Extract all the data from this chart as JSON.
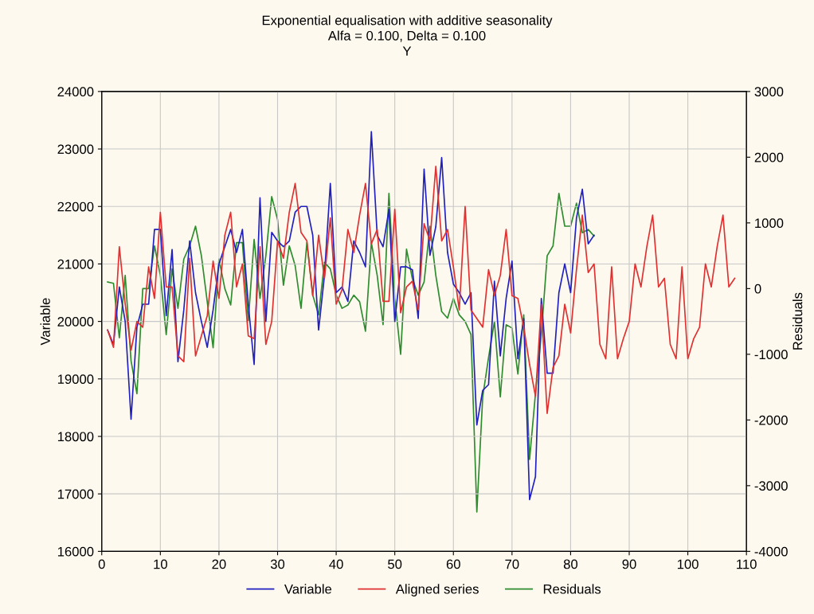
{
  "chart_data": {
    "type": "line",
    "title": "Exponential equalisation with additive seasonality",
    "subtitle": "Alfa = 0.100, Delta = 0.100",
    "annotations": [
      "Y"
    ],
    "xlabel": null,
    "ylabel": "Variable",
    "y2label": "Residuals",
    "xlim": [
      0,
      110
    ],
    "xticks": [
      0,
      10,
      20,
      30,
      40,
      50,
      60,
      70,
      80,
      90,
      100,
      110
    ],
    "ylim": [
      16000,
      24000
    ],
    "yticks": [
      16000,
      17000,
      18000,
      19000,
      20000,
      21000,
      22000,
      23000,
      24000
    ],
    "y2lim": [
      -4000,
      3000
    ],
    "y2ticks": [
      -4000,
      -3000,
      -2000,
      -1000,
      0,
      1000,
      2000,
      3000
    ],
    "grid": true,
    "legend": "bottom",
    "marker": "none",
    "line_style": "solid",
    "series": [
      {
        "name": "Variable",
        "color": "#2020c0",
        "x": [
          1,
          2,
          3,
          4,
          5,
          6,
          7,
          8,
          9,
          10,
          11,
          12,
          13,
          14,
          15,
          16,
          17,
          18,
          19,
          20,
          21,
          22,
          23,
          24,
          25,
          26,
          27,
          28,
          29,
          30,
          31,
          32,
          33,
          34,
          35,
          36,
          37,
          38,
          39,
          40,
          41,
          42,
          43,
          44,
          45,
          46,
          47,
          48,
          49,
          50,
          51,
          52,
          53,
          54,
          55,
          56,
          57,
          58,
          59,
          60,
          61,
          62,
          63,
          64,
          65,
          66,
          67,
          68,
          69,
          70,
          71,
          72,
          73,
          74,
          75,
          76,
          77,
          78,
          79,
          80,
          81,
          82,
          83,
          84
        ],
        "values": [
          19850,
          19600,
          20600,
          20000,
          18300,
          19900,
          20300,
          20300,
          21600,
          21600,
          20100,
          21250,
          19300,
          20200,
          21400,
          20500,
          20000,
          19550,
          20200,
          21000,
          21300,
          21600,
          21200,
          21600,
          20300,
          19250,
          22150,
          20000,
          21550,
          21400,
          21300,
          21400,
          21900,
          22000,
          22000,
          21500,
          19850,
          20800,
          22400,
          20500,
          20600,
          20350,
          21400,
          21200,
          20950,
          23300,
          21500,
          21300,
          21950,
          20000,
          20950,
          20950,
          20900,
          20050,
          22650,
          21150,
          21650,
          22850,
          21200,
          20650,
          20500,
          20300,
          20500,
          18200,
          18800,
          18900,
          20700,
          19400,
          20400,
          21050,
          19350,
          20050,
          16900,
          17300,
          20400,
          19100,
          19100,
          20500,
          21000,
          20500,
          21800,
          22300,
          21350,
          21500
        ]
      },
      {
        "name": "Aligned series",
        "color": "#e03030",
        "x": [
          1,
          2,
          3,
          4,
          5,
          6,
          7,
          8,
          9,
          10,
          11,
          12,
          13,
          14,
          15,
          16,
          17,
          18,
          19,
          20,
          21,
          22,
          23,
          24,
          25,
          26,
          27,
          28,
          29,
          30,
          31,
          32,
          33,
          34,
          35,
          36,
          37,
          38,
          39,
          40,
          41,
          42,
          43,
          44,
          45,
          46,
          47,
          48,
          49,
          50,
          51,
          52,
          53,
          54,
          55,
          56,
          57,
          58,
          59,
          60,
          61,
          62,
          63,
          64,
          65,
          66,
          67,
          68,
          69,
          70,
          71,
          72,
          73,
          74,
          75,
          76,
          77,
          78,
          79,
          80,
          81,
          82,
          83,
          84,
          85,
          86,
          87,
          88,
          89,
          90,
          91,
          92,
          93,
          94,
          95,
          96,
          97,
          98,
          99,
          100,
          101,
          102,
          103,
          104,
          105,
          106,
          107,
          108
        ],
        "values": [
          19850,
          19550,
          21300,
          20300,
          19500,
          20000,
          19900,
          20950,
          20400,
          21900,
          20600,
          20600,
          19400,
          19300,
          21100,
          19400,
          19750,
          20100,
          21050,
          20400,
          21500,
          21900,
          20600,
          21000,
          19750,
          19700,
          21300,
          19600,
          20000,
          21400,
          21100,
          21900,
          22400,
          21550,
          21400,
          20450,
          21500,
          20750,
          21800,
          20300,
          20550,
          21600,
          21200,
          21850,
          22400,
          21350,
          21600,
          20350,
          20350,
          21950,
          20150,
          20600,
          20700,
          20200,
          21700,
          21400,
          22700,
          21400,
          21600,
          20950,
          20200,
          22000,
          20200,
          20050,
          19900,
          20900,
          20450,
          20800,
          21600,
          20450,
          20400,
          19900,
          19250,
          18700,
          20300,
          18400,
          19200,
          19400,
          20300,
          19800,
          20900,
          21850,
          20850,
          21000,
          19600,
          19350,
          20950,
          19350,
          19700,
          20000,
          21000,
          20600,
          21300,
          21850,
          20600,
          20750,
          19600,
          19350,
          20950,
          19350,
          19700,
          19900,
          21000,
          20600,
          21300,
          21850,
          20600,
          20750
        ]
      },
      {
        "name": "Residuals",
        "color": "#2e8b2e",
        "axis": "y2",
        "x": [
          1,
          2,
          3,
          4,
          5,
          6,
          7,
          8,
          9,
          10,
          11,
          12,
          13,
          14,
          15,
          16,
          17,
          18,
          19,
          20,
          21,
          22,
          23,
          24,
          25,
          26,
          27,
          28,
          29,
          30,
          31,
          32,
          33,
          34,
          35,
          36,
          37,
          38,
          39,
          40,
          41,
          42,
          43,
          44,
          45,
          46,
          47,
          48,
          49,
          50,
          51,
          52,
          53,
          54,
          55,
          56,
          57,
          58,
          59,
          60,
          61,
          62,
          63,
          64,
          65,
          66,
          67,
          68,
          69,
          70,
          71,
          72,
          73,
          74,
          75,
          76,
          77,
          78,
          79,
          80,
          81,
          82,
          83,
          84
        ],
        "values": [
          100,
          80,
          -750,
          200,
          -1100,
          -1600,
          0,
          0,
          650,
          200,
          -700,
          300,
          -300,
          450,
          650,
          950,
          500,
          -200,
          -900,
          450,
          0,
          -250,
          700,
          700,
          -500,
          750,
          -150,
          500,
          1400,
          1050,
          50,
          650,
          350,
          -300,
          700,
          -100,
          -400,
          400,
          300,
          -100,
          -300,
          -250,
          -100,
          -200,
          -650,
          700,
          200,
          -550,
          1450,
          -150,
          -1000,
          600,
          150,
          -100,
          100,
          950,
          200,
          -350,
          -450,
          -150,
          -400,
          -500,
          -700,
          -3400,
          -1650,
          -1050,
          -500,
          -1650,
          -550,
          -600,
          -1300,
          -400,
          -2600,
          -1600,
          -700,
          500,
          650,
          1450,
          950,
          950,
          1300,
          850,
          900,
          800
        ]
      }
    ]
  }
}
